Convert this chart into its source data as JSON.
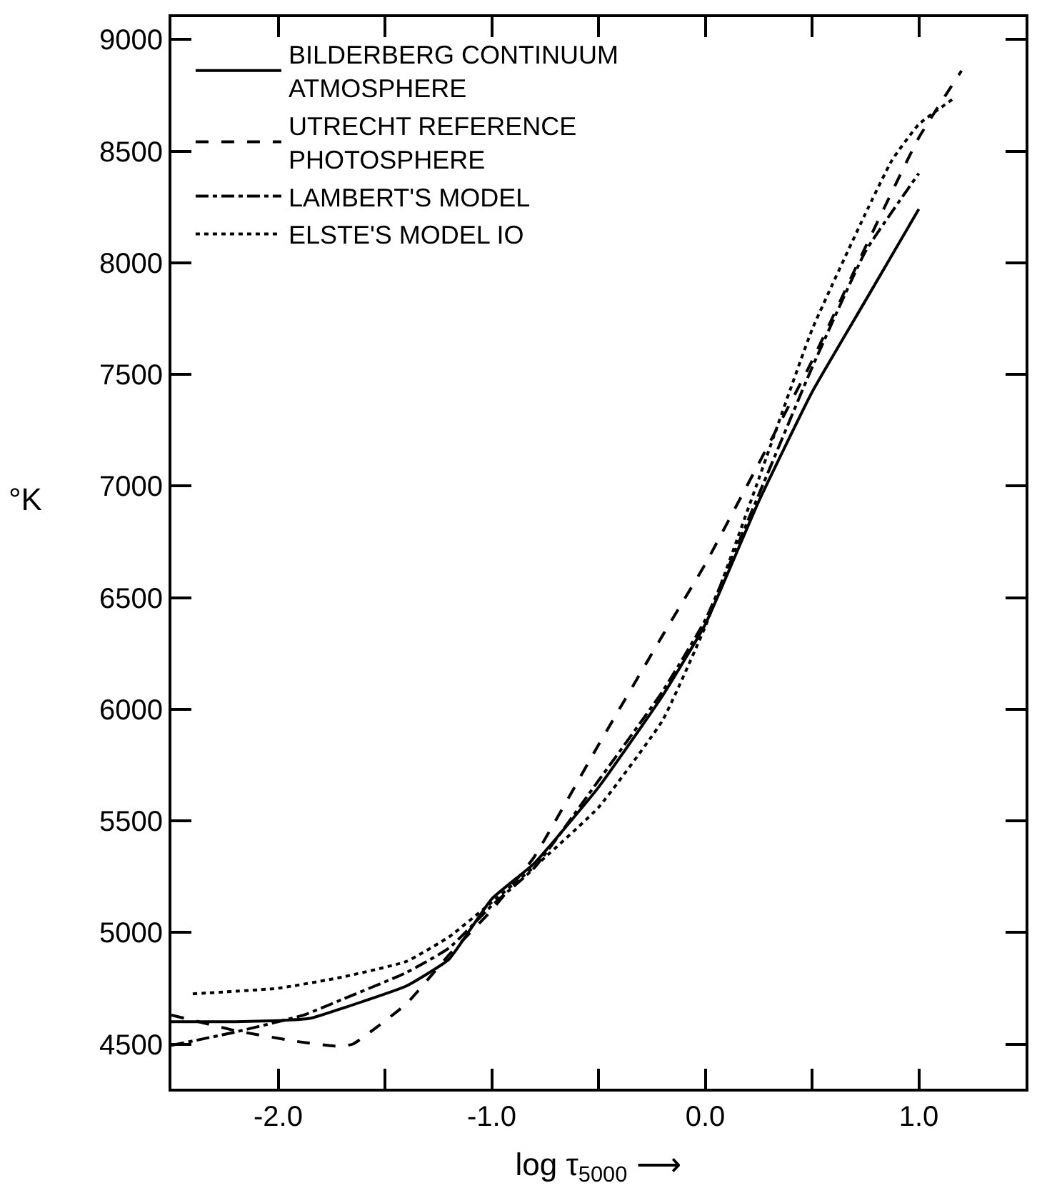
{
  "chart_data": {
    "type": "line",
    "xlabel": "log τ$_{5000}$ ⟶",
    "ylabel": "°K",
    "xlim": [
      -2.5,
      1.5
    ],
    "ylim": [
      4300,
      9100
    ],
    "xticks": [
      {
        "value": -2.0,
        "label": "-2.0"
      },
      {
        "value": -1.5,
        "label": null
      },
      {
        "value": -1.0,
        "label": "-1.0"
      },
      {
        "value": -0.5,
        "label": null
      },
      {
        "value": 0.0,
        "label": "0.0"
      },
      {
        "value": 0.5,
        "label": null
      },
      {
        "value": 1.0,
        "label": "1.0"
      }
    ],
    "yticks": [
      4500,
      5000,
      5500,
      6000,
      6500,
      7000,
      7500,
      8000,
      8500,
      9000
    ],
    "legend": "top left",
    "grid": false,
    "series": [
      {
        "name": "BILDERBERG CONTINUUM\nATMOSPHERE",
        "color": "#000000",
        "line_style": "solid",
        "x": [
          -2.5,
          -2.2,
          -2.0,
          -1.85,
          -1.7,
          -1.4,
          -1.2,
          -1.0,
          -0.8,
          -0.5,
          -0.2,
          0.0,
          0.25,
          0.5,
          0.75,
          1.0
        ],
        "values": [
          4600,
          4600,
          4605,
          4615,
          4660,
          4760,
          4880,
          5150,
          5310,
          5650,
          6060,
          6380,
          6930,
          7420,
          7830,
          8240
        ]
      },
      {
        "name": "UTRECHT REFERENCE\nPHOTOSPHERE",
        "color": "#000000",
        "line_style": "dashed",
        "x": [
          -2.5,
          -2.2,
          -1.9,
          -1.72,
          -1.65,
          -1.4,
          -1.2,
          -1.0,
          -0.8,
          -0.5,
          -0.2,
          0.0,
          0.25,
          0.5,
          0.75,
          1.0,
          1.2
        ],
        "values": [
          4630,
          4560,
          4510,
          4490,
          4500,
          4680,
          4900,
          5100,
          5340,
          5840,
          6330,
          6650,
          7100,
          7560,
          8070,
          8560,
          8860
        ]
      },
      {
        "name": "LAMBERT'S MODEL",
        "color": "#000000",
        "line_style": "dashdot",
        "x": [
          -2.5,
          -2.2,
          -1.88,
          -1.7,
          -1.4,
          -1.2,
          -1.0,
          -0.8,
          -0.5,
          -0.2,
          0.0,
          0.25,
          0.5,
          0.75,
          1.0
        ],
        "values": [
          4494,
          4554,
          4630,
          4700,
          4820,
          4930,
          5120,
          5290,
          5680,
          6080,
          6400,
          6960,
          7530,
          8050,
          8400
        ]
      },
      {
        "name": "ELSTE'S MODEL IO",
        "color": "#000000",
        "line_style": "dotted",
        "x": [
          -2.4,
          -2.0,
          -1.7,
          -1.4,
          -1.2,
          -1.0,
          -0.76,
          -0.5,
          -0.2,
          0.0,
          0.25,
          0.5,
          0.75,
          0.875,
          1.0,
          1.17
        ],
        "values": [
          4725,
          4750,
          4800,
          4870,
          4980,
          5135,
          5328,
          5560,
          5950,
          6370,
          7030,
          7700,
          8220,
          8460,
          8620,
          8740
        ]
      }
    ]
  }
}
